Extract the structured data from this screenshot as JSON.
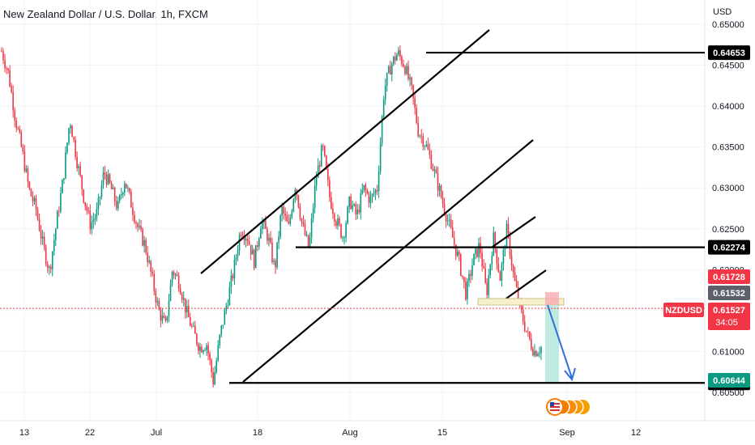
{
  "title": "New Zealand Dollar / U.S. Dollar, 1h, FXCM",
  "currency": "USD",
  "chart_data": {
    "type": "candlestick",
    "symbol": "NZDUSD",
    "timeframe": "1h",
    "x_ticks": [
      "13",
      "22",
      "Jul",
      "18",
      "Aug",
      "15",
      "Sep",
      "12"
    ],
    "y_ticks": [
      "0.65000",
      "0.64500",
      "0.64000",
      "0.63500",
      "0.63000",
      "0.62500",
      "0.62000",
      "0.61500",
      "0.61000",
      "0.60500"
    ],
    "ylim": [
      0.6005,
      0.653
    ],
    "price_path": [
      [
        0.6467,
        0.644,
        0.6385,
        0.6345,
        0.6298,
        0.6275,
        0.6232,
        0.6198,
        0.6255,
        0.631
      ],
      [
        0.6385,
        0.6335,
        0.629,
        0.6255,
        0.627,
        0.632,
        0.63,
        0.6275,
        0.631,
        0.628
      ],
      [
        0.625,
        0.623,
        0.619,
        0.615,
        0.613,
        0.62,
        0.6185,
        0.615,
        0.6125,
        0.6105
      ],
      [
        0.611,
        0.6063,
        0.612,
        0.616,
        0.62,
        0.625,
        0.624,
        0.621,
        0.626,
        0.624
      ],
      [
        0.62,
        0.6275,
        0.625,
        0.6305,
        0.6255,
        0.6225,
        0.631,
        0.635,
        0.629,
        0.626
      ],
      [
        0.624,
        0.6285,
        0.6265,
        0.63,
        0.6285,
        0.63,
        0.642,
        0.645,
        0.6465,
        0.645
      ],
      [
        0.642,
        0.637,
        0.6355,
        0.633,
        0.63,
        0.627,
        0.624,
        0.621,
        0.617,
        0.621
      ],
      [
        0.623,
        0.617,
        0.624,
        0.619,
        0.625,
        0.619,
        0.615,
        0.612,
        0.61,
        0.6105
      ]
    ],
    "levels": [
      {
        "name": "high",
        "price": 0.64653,
        "label": "0.64653",
        "color": "#000000"
      },
      {
        "name": "resistance",
        "price": 0.62274,
        "label": "0.62274",
        "color": "#000000"
      },
      {
        "name": "low",
        "price": 0.60616,
        "label": "0.60616",
        "color": "#000000"
      }
    ],
    "markers": [
      {
        "name": "stop",
        "label": "0.61728",
        "price": 0.61728,
        "color": "#f23645"
      },
      {
        "name": "entry",
        "label": "0.61532",
        "price": 0.61532,
        "color": "#5d606b"
      },
      {
        "name": "target",
        "label": "0.60644",
        "price": 0.60644,
        "color": "#089981"
      }
    ],
    "current": {
      "symbol": "NZDUSD",
      "price": "0.61527",
      "countdown": "34:05",
      "color": "#f23645"
    }
  }
}
